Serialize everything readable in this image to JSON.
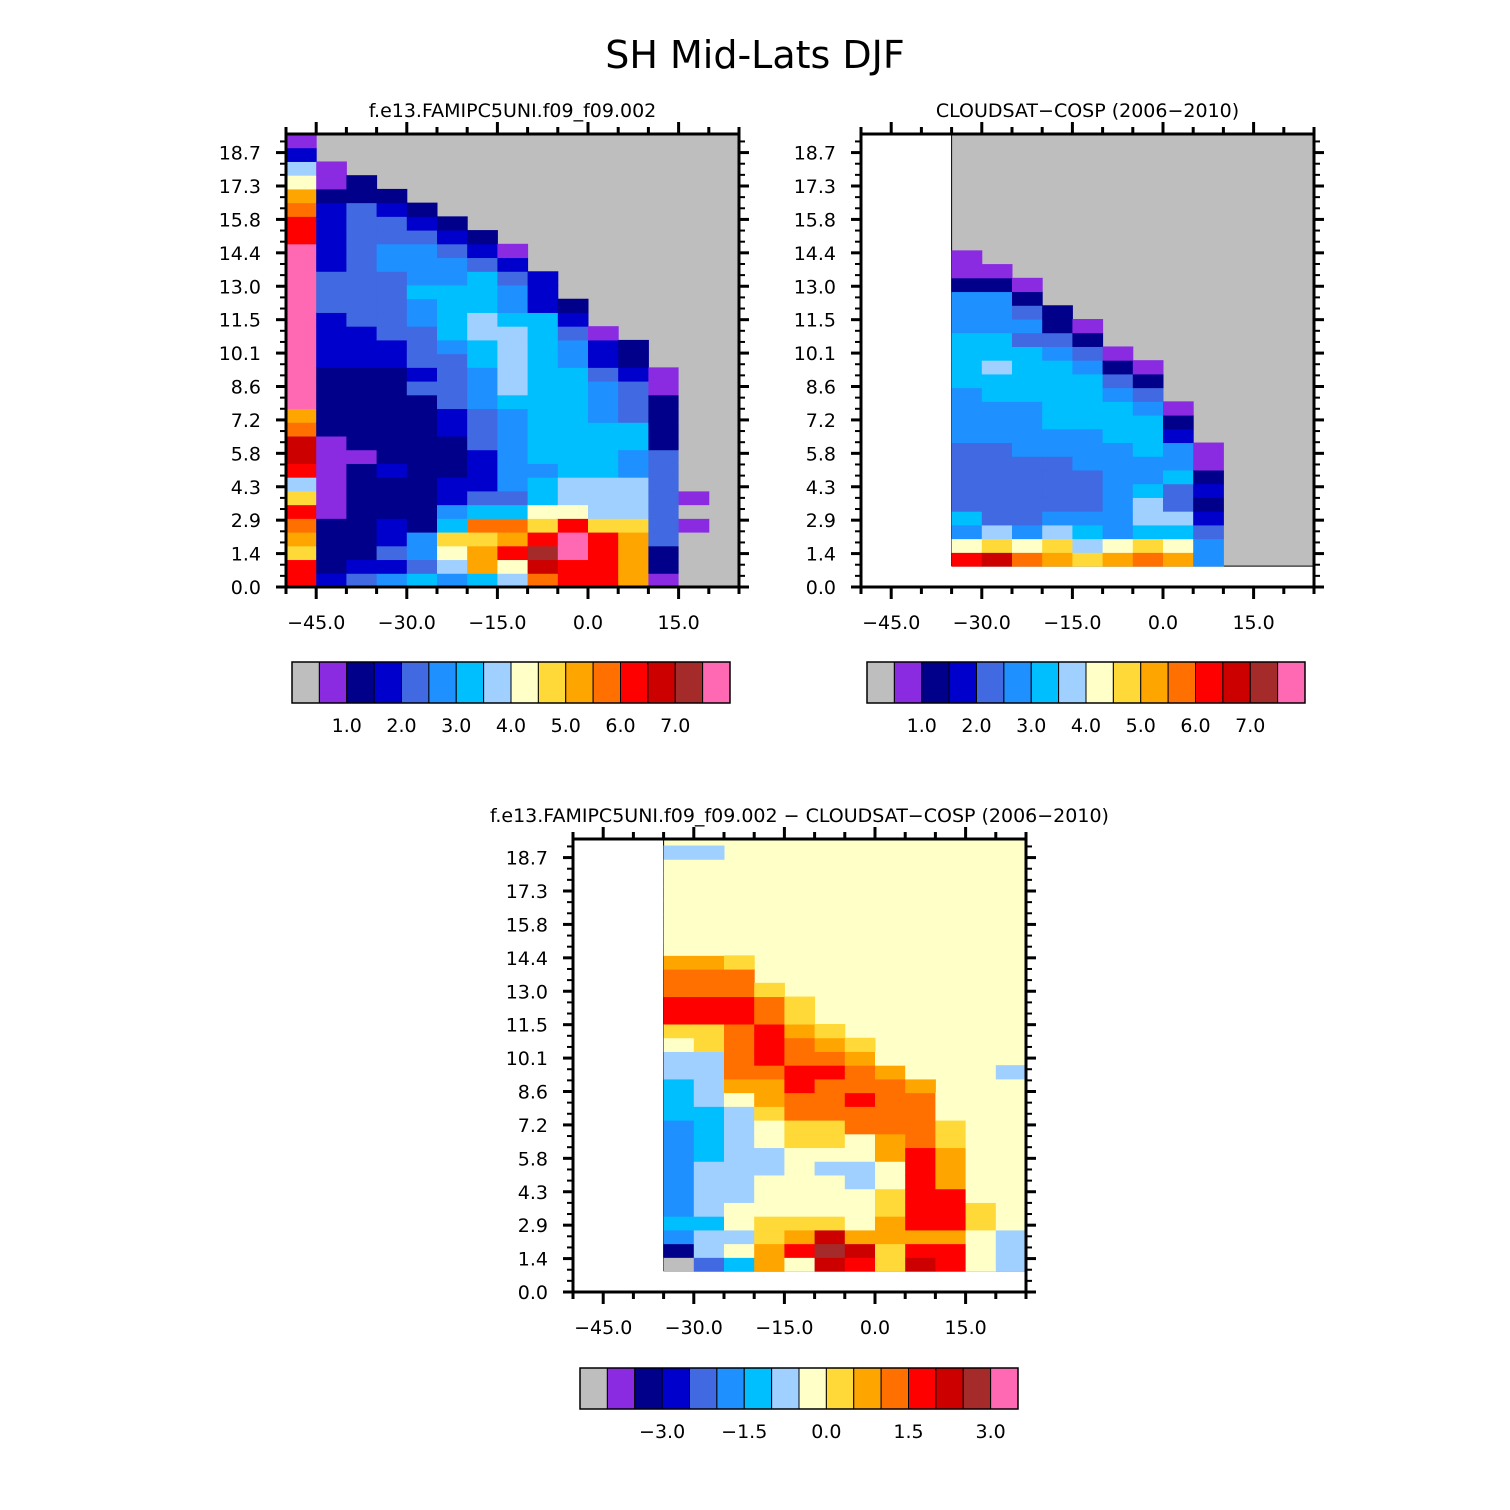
{
  "title": "SH Mid-Lats DJF",
  "chart_data": [
    {
      "type": "heatmap",
      "title": "f.e13.FAMIPC5UNI.f09_f09.002",
      "x_ticks": [
        "−45.0",
        "−30.0",
        "−15.0",
        "0.0",
        "15.0"
      ],
      "y_ticks": [
        "0.0",
        "1.4",
        "2.9",
        "4.3",
        "5.8",
        "7.2",
        "8.6",
        "10.1",
        "11.5",
        "13.0",
        "14.4",
        "15.8",
        "17.3",
        "18.7"
      ],
      "xlim": [
        -50,
        25
      ],
      "ylim": [
        0,
        19.5
      ],
      "missing_color": "#bebebe",
      "colors": [
        "#bebebe",
        "#8a2be2",
        "#00008b",
        "#0000cd",
        "#4169e1",
        "#1e90ff",
        "#00bfff",
        "#a0d0ff",
        "#ffffc8",
        "#ffd938",
        "#ffa500",
        "#ff7000",
        "#ff0000",
        "#cd0000",
        "#a52a2a",
        "#ff69b4"
      ],
      "colorbar_labels": [
        "1.0",
        "2.0",
        "3.0",
        "4.0",
        "5.0",
        "6.0",
        "7.0"
      ],
      "colorbar_label_positions": [
        1,
        3,
        5,
        7,
        9,
        11,
        13
      ],
      "columns": [
        {
          "x": -47.5,
          "cells": [
            12,
            12,
            9,
            10,
            11,
            12,
            9,
            7,
            12,
            13,
            13,
            11,
            10,
            15,
            15,
            15,
            15,
            15,
            15,
            15,
            15,
            15,
            15,
            15,
            15,
            12,
            12,
            11,
            10,
            8,
            7,
            3,
            1
          ]
        },
        {
          "x": -42.5,
          "cells": [
            3,
            2,
            2,
            2,
            2,
            1,
            1,
            1,
            1,
            1,
            1,
            2,
            2,
            2,
            2,
            2,
            3,
            3,
            3,
            3,
            4,
            4,
            4,
            3,
            3,
            3,
            3,
            3,
            2,
            1,
            1
          ]
        },
        {
          "x": -37.5,
          "cells": [
            4,
            3,
            2,
            2,
            2,
            2,
            2,
            2,
            2,
            1,
            2,
            2,
            2,
            2,
            2,
            2,
            3,
            3,
            3,
            4,
            4,
            4,
            4,
            4,
            4,
            4,
            4,
            4,
            2,
            2
          ]
        },
        {
          "x": -32.5,
          "cells": [
            5,
            3,
            4,
            3,
            3,
            2,
            2,
            2,
            3,
            2,
            2,
            2,
            2,
            2,
            2,
            2,
            3,
            3,
            4,
            4,
            4,
            4,
            4,
            5,
            5,
            4,
            4,
            3,
            2
          ]
        },
        {
          "x": -27.5,
          "cells": [
            6,
            4,
            5,
            5,
            2,
            2,
            2,
            2,
            2,
            2,
            2,
            2,
            2,
            2,
            4,
            3,
            4,
            4,
            4,
            5,
            5,
            6,
            5,
            5,
            5,
            4,
            3,
            2
          ]
        },
        {
          "x": -22.5,
          "cells": [
            5,
            7,
            8,
            9,
            6,
            5,
            3,
            3,
            2,
            2,
            2,
            3,
            3,
            4,
            4,
            4,
            4,
            5,
            6,
            6,
            6,
            6,
            5,
            5,
            4,
            3,
            2
          ]
        },
        {
          "x": -17.5,
          "cells": [
            6,
            10,
            10,
            9,
            11,
            6,
            4,
            3,
            3,
            3,
            4,
            4,
            4,
            5,
            5,
            5,
            6,
            6,
            7,
            7,
            6,
            6,
            6,
            4,
            3,
            2
          ]
        },
        {
          "x": -12.5,
          "cells": [
            7,
            8,
            12,
            10,
            11,
            6,
            4,
            5,
            5,
            5,
            5,
            5,
            5,
            6,
            7,
            7,
            7,
            7,
            7,
            6,
            5,
            5,
            4,
            3,
            1
          ]
        },
        {
          "x": -7.5,
          "cells": [
            11,
            13,
            14,
            12,
            9,
            8,
            6,
            6,
            5,
            6,
            6,
            6,
            6,
            6,
            6,
            6,
            6,
            6,
            6,
            6,
            3,
            3,
            3
          ]
        },
        {
          "x": -2.5,
          "cells": [
            12,
            12,
            15,
            15,
            12,
            8,
            7,
            7,
            6,
            6,
            6,
            6,
            6,
            6,
            6,
            6,
            5,
            5,
            4,
            3,
            2
          ]
        },
        {
          "x": 2.5,
          "cells": [
            12,
            12,
            12,
            12,
            9,
            7,
            7,
            7,
            6,
            6,
            6,
            6,
            5,
            5,
            5,
            4,
            3,
            3,
            1
          ]
        },
        {
          "x": 7.5,
          "cells": [
            10,
            10,
            10,
            10,
            9,
            7,
            7,
            7,
            5,
            5,
            6,
            6,
            4,
            4,
            4,
            3,
            2,
            2
          ]
        },
        {
          "x": 12.5,
          "cells": [
            1,
            2,
            2,
            4,
            4,
            4,
            4,
            4,
            4,
            4,
            2,
            2,
            2,
            2,
            1,
            1
          ]
        },
        {
          "x": 17.5,
          "cells": [
            0,
            0,
            0,
            0,
            1,
            0,
            1,
            0,
            0,
            0,
            0,
            0,
            0,
            0,
            0,
            0
          ]
        }
      ]
    },
    {
      "type": "heatmap",
      "title": "CLOUDSAT−COSP (2006−2010)",
      "x_ticks": [
        "−45.0",
        "−30.0",
        "−15.0",
        "0.0",
        "15.0"
      ],
      "y_ticks": [
        "0.0",
        "1.4",
        "2.9",
        "4.3",
        "5.8",
        "7.2",
        "8.6",
        "10.1",
        "11.5",
        "13.0",
        "14.4",
        "15.8",
        "17.3",
        "18.7"
      ],
      "xlim": [
        -50,
        25
      ],
      "ylim": [
        0,
        19.5
      ],
      "data_region": {
        "xmin": -35,
        "xmax": 25,
        "ymin": 0.9
      },
      "missing_color": "#bebebe",
      "colors": [
        "#bebebe",
        "#8a2be2",
        "#00008b",
        "#0000cd",
        "#4169e1",
        "#1e90ff",
        "#00bfff",
        "#a0d0ff",
        "#ffffc8",
        "#ffd938",
        "#ffa500",
        "#ff7000",
        "#ff0000",
        "#cd0000",
        "#a52a2a",
        "#ff69b4"
      ],
      "colorbar_labels": [
        "1.0",
        "2.0",
        "3.0",
        "4.0",
        "5.0",
        "6.0",
        "7.0"
      ],
      "colorbar_label_positions": [
        1,
        3,
        5,
        7,
        9,
        11,
        13
      ],
      "columns": [
        {
          "x": -32.5,
          "cells": [
            12,
            8,
            5,
            6,
            4,
            4,
            4,
            4,
            4,
            5,
            5,
            5,
            5,
            6,
            6,
            6,
            6,
            5,
            5,
            5,
            2,
            1,
            1
          ]
        },
        {
          "x": -27.5,
          "cells": [
            13,
            9,
            7,
            4,
            4,
            4,
            4,
            4,
            4,
            5,
            5,
            5,
            6,
            6,
            7,
            6,
            6,
            5,
            5,
            5,
            2,
            1
          ]
        },
        {
          "x": -22.5,
          "cells": [
            11,
            8,
            5,
            4,
            4,
            4,
            4,
            4,
            5,
            5,
            5,
            5,
            6,
            6,
            6,
            6,
            4,
            5,
            4,
            2,
            1
          ]
        },
        {
          "x": -17.5,
          "cells": [
            10,
            9,
            7,
            5,
            4,
            4,
            4,
            4,
            5,
            5,
            6,
            6,
            6,
            6,
            6,
            5,
            4,
            2,
            2
          ]
        },
        {
          "x": -12.5,
          "cells": [
            9,
            7,
            6,
            5,
            4,
            4,
            4,
            5,
            5,
            5,
            6,
            6,
            6,
            6,
            5,
            4,
            2,
            1
          ]
        },
        {
          "x": -7.5,
          "cells": [
            10,
            8,
            5,
            5,
            5,
            5,
            5,
            5,
            5,
            6,
            6,
            6,
            5,
            4,
            2,
            1
          ]
        },
        {
          "x": -2.5,
          "cells": [
            11,
            9,
            6,
            7,
            7,
            6,
            5,
            5,
            6,
            6,
            6,
            5,
            4,
            2,
            1
          ]
        },
        {
          "x": 2.5,
          "cells": [
            10,
            8,
            6,
            7,
            4,
            4,
            6,
            5,
            5,
            3,
            2,
            1
          ]
        },
        {
          "x": 7.5,
          "cells": [
            5,
            5,
            4,
            3,
            2,
            3,
            2,
            1,
            1
          ]
        }
      ]
    },
    {
      "type": "heatmap",
      "title": "f.e13.FAMIPC5UNI.f09_f09.002 − CLOUDSAT−COSP (2006−2010)",
      "x_ticks": [
        "−45.0",
        "−30.0",
        "−15.0",
        "0.0",
        "15.0"
      ],
      "y_ticks": [
        "0.0",
        "1.4",
        "2.9",
        "4.3",
        "5.8",
        "7.2",
        "8.6",
        "10.1",
        "11.5",
        "13.0",
        "14.4",
        "15.8",
        "17.3",
        "18.7"
      ],
      "xlim": [
        -50,
        25
      ],
      "ylim": [
        0,
        19.5
      ],
      "data_region": {
        "xmin": -35,
        "xmax": 25,
        "ymin": 0.9
      },
      "background_class": 8,
      "colors": [
        "#bebebe",
        "#8a2be2",
        "#00008b",
        "#0000cd",
        "#4169e1",
        "#1e90ff",
        "#00bfff",
        "#a0d0ff",
        "#ffffc8",
        "#ffd938",
        "#ffa500",
        "#ff7000",
        "#ff0000",
        "#cd0000",
        "#a52a2a",
        "#ff69b4"
      ],
      "colorbar_labels": [
        "−3.0",
        "−1.5",
        "0.0",
        "1.5",
        "3.0"
      ],
      "colorbar_label_positions": [
        2,
        5,
        8,
        11,
        14
      ],
      "columns": [
        {
          "x": -32.5,
          "cells": [
            0,
            2,
            5,
            6,
            5,
            5,
            5,
            5,
            5,
            5,
            5,
            6,
            6,
            6,
            7,
            7,
            8,
            9,
            12,
            12,
            11,
            11,
            10,
            8,
            8,
            8,
            8,
            8,
            8,
            8,
            7,
            7,
            7
          ]
        },
        {
          "x": -27.5,
          "cells": [
            4,
            7,
            7,
            6,
            7,
            7,
            7,
            7,
            6,
            6,
            6,
            6,
            7,
            7,
            7,
            7,
            9,
            9,
            12,
            12,
            11,
            11,
            10,
            8,
            8,
            8,
            8,
            8,
            8,
            8,
            7,
            7,
            7
          ]
        },
        {
          "x": -22.5,
          "cells": [
            6,
            8,
            7,
            8,
            8,
            7,
            7,
            7,
            7,
            7,
            7,
            7,
            8,
            10,
            11,
            11,
            11,
            11,
            12,
            12,
            11,
            11,
            9
          ]
        },
        {
          "x": -17.5,
          "cells": [
            10,
            10,
            9,
            9,
            8,
            8,
            8,
            7,
            7,
            8,
            8,
            9,
            10,
            10,
            11,
            12,
            12,
            12,
            11,
            11,
            9
          ]
        },
        {
          "x": -12.5,
          "cells": [
            8,
            12,
            10,
            9,
            8,
            8,
            8,
            8,
            8,
            9,
            9,
            11,
            11,
            12,
            12,
            11,
            11,
            10,
            9,
            9
          ]
        },
        {
          "x": -7.5,
          "cells": [
            13,
            14,
            13,
            9,
            8,
            8,
            8,
            7,
            8,
            9,
            9,
            11,
            11,
            11,
            12,
            11,
            10,
            9
          ]
        },
        {
          "x": -2.5,
          "cells": [
            12,
            13,
            10,
            8,
            8,
            8,
            7,
            7,
            8,
            8,
            11,
            11,
            12,
            11,
            11,
            10,
            9
          ]
        },
        {
          "x": 2.5,
          "cells": [
            9,
            9,
            10,
            10,
            9,
            9,
            8,
            8,
            10,
            10,
            11,
            11,
            11,
            11,
            10,
            8
          ]
        },
        {
          "x": 7.5,
          "cells": [
            13,
            12,
            10,
            12,
            12,
            12,
            12,
            12,
            12,
            11,
            11,
            11,
            11,
            10,
            8
          ]
        },
        {
          "x": 12.5,
          "cells": [
            12,
            12,
            10,
            12,
            12,
            12,
            10,
            10,
            10,
            9,
            9,
            8,
            8
          ]
        },
        {
          "x": 17.5,
          "cells": [
            8,
            8,
            8,
            9,
            9,
            8,
            8,
            8,
            8,
            8,
            8,
            8,
            8
          ]
        },
        {
          "x": 22.5,
          "cells": [
            7,
            7,
            7,
            8,
            8,
            8,
            8,
            8,
            8,
            8,
            8,
            8,
            8,
            8,
            7
          ]
        }
      ]
    }
  ]
}
